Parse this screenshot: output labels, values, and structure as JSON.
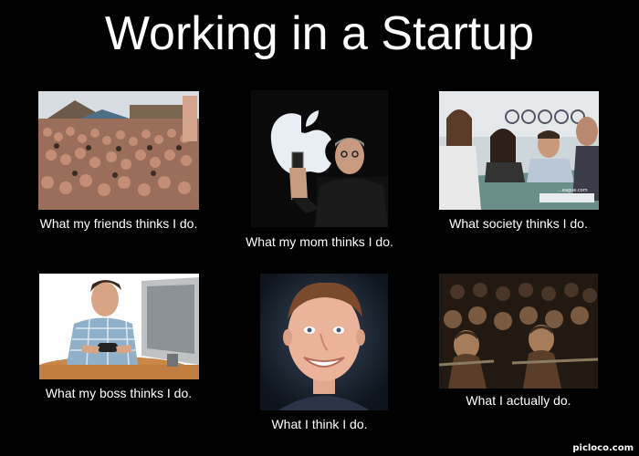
{
  "title": "Working in a Startup",
  "panels": [
    {
      "caption": "What my friends thinks I do."
    },
    {
      "caption": "What my mom thinks I do."
    },
    {
      "caption": "What society thinks I do."
    },
    {
      "caption": "What my boss thinks I do."
    },
    {
      "caption": "What I think I do."
    },
    {
      "caption": "What I actually do."
    }
  ],
  "watermark": "picloco.com",
  "colors": {
    "background": "#000000",
    "text": "#ffffff"
  }
}
